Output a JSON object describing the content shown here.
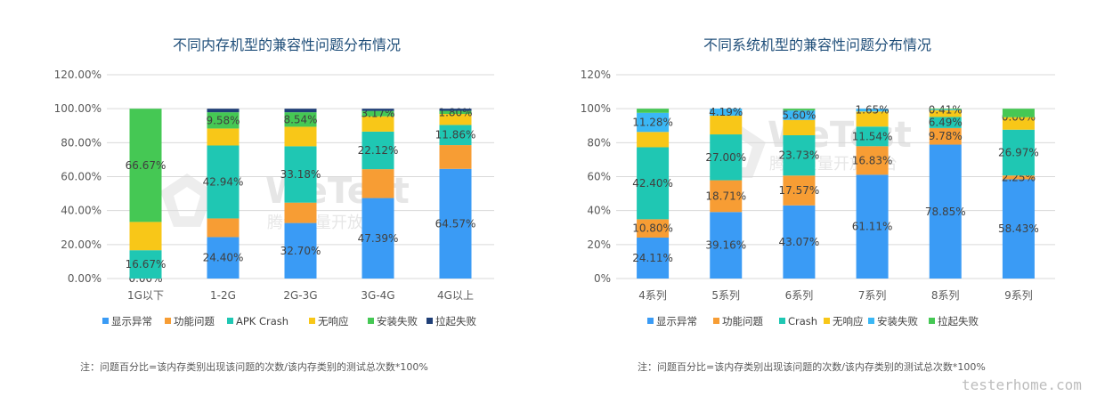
{
  "watermark": {
    "brand": "WeTest",
    "subtitle": "腾讯质量开放平台",
    "site": "testerhome.com"
  },
  "chart_data": [
    {
      "type": "bar",
      "stacked": true,
      "title": "不同内存机型的兼容性问题分布情况",
      "categories": [
        "1G以下",
        "1-2G",
        "2G-3G",
        "3G-4G",
        "4G以上"
      ],
      "y_ticks": [
        "0.00%",
        "20.00%",
        "40.00%",
        "60.00%",
        "80.00%",
        "100.00%",
        "120.00%"
      ],
      "ylim": [
        0,
        120
      ],
      "grid": true,
      "legend_position": "bottom",
      "series": [
        {
          "name": "显示异常",
          "color": "#3a9bf5",
          "values": [
            0.0,
            24.4,
            32.7,
            47.39,
            64.57
          ],
          "labels": [
            "0.00%",
            "24.40%",
            "32.70%",
            "47.39%",
            "64.57%"
          ]
        },
        {
          "name": "功能问题",
          "color": "#f79d34",
          "values": [
            0.0,
            11.0,
            12.0,
            17.0,
            14.0
          ],
          "labels": [
            "",
            "",
            "",
            "",
            ""
          ]
        },
        {
          "name": "APK Crash",
          "color": "#1fc7b3",
          "values": [
            16.67,
            42.94,
            33.18,
            22.12,
            11.86
          ],
          "labels": [
            "16.67%",
            "42.94%",
            "33.18%",
            "22.12%",
            "11.86%"
          ]
        },
        {
          "name": "无响应",
          "color": "#f8c718",
          "values": [
            16.66,
            10.0,
            11.5,
            9.0,
            6.5
          ],
          "labels": [
            "",
            "",
            "",
            "",
            ""
          ]
        },
        {
          "name": "安装失败",
          "color": "#45c854",
          "values": [
            66.67,
            9.58,
            8.54,
            3.17,
            1.8
          ],
          "labels": [
            "66.67%",
            "9.58%",
            "8.54%",
            "3.17%",
            "1.80%"
          ]
        },
        {
          "name": "拉起失败",
          "color": "#1f3f77",
          "values": [
            0.0,
            2.08,
            2.08,
            1.32,
            1.27
          ],
          "labels": [
            "",
            "",
            "",
            "",
            ""
          ]
        }
      ],
      "note": "注：问题百分比=该内存类别出现该问题的次数/该内存类别的测试总次数*100%"
    },
    {
      "type": "bar",
      "stacked": true,
      "title": "不同系统机型的兼容性问题分布情况",
      "categories": [
        "4系列",
        "5系列",
        "6系列",
        "7系列",
        "8系列",
        "9系列"
      ],
      "y_ticks": [
        "0%",
        "20%",
        "40%",
        "60%",
        "80%",
        "100%",
        "120%"
      ],
      "ylim": [
        0,
        120
      ],
      "grid": true,
      "legend_position": "bottom",
      "series": [
        {
          "name": "显示异常",
          "color": "#3a9bf5",
          "values": [
            24.11,
            39.16,
            43.07,
            61.11,
            78.85,
            58.43
          ],
          "labels": [
            "24.11%",
            "39.16%",
            "43.07%",
            "61.11%",
            "78.85%",
            "58.43%"
          ]
        },
        {
          "name": "功能问题",
          "color": "#f79d34",
          "values": [
            10.8,
            18.71,
            17.57,
            16.83,
            9.78,
            2.25
          ],
          "labels": [
            "10.80%",
            "18.71%",
            "17.57%",
            "16.83%",
            "9.78%",
            "2.25%"
          ]
        },
        {
          "name": "Crash",
          "color": "#1fc7b3",
          "values": [
            42.4,
            27.0,
            23.73,
            11.54,
            6.49,
            26.97
          ],
          "labels": [
            "42.40%",
            "27.00%",
            "23.73%",
            "11.54%",
            "6.49%",
            "26.97%"
          ]
        },
        {
          "name": "无响应",
          "color": "#f8c718",
          "values": [
            9.0,
            11.0,
            9.0,
            8.87,
            4.0,
            7.35
          ],
          "labels": [
            "",
            "",
            "",
            "",
            "",
            ""
          ]
        },
        {
          "name": "安装失败",
          "color": "#3ab7f5",
          "values": [
            11.28,
            4.19,
            5.6,
            1.65,
            0.41,
            0.0
          ],
          "labels": [
            "11.28%",
            "4.19%",
            "5.60%",
            "1.65%",
            "0.41%",
            "0.00%"
          ]
        },
        {
          "name": "拉起失败",
          "color": "#45c854",
          "values": [
            2.41,
            0.0,
            1.03,
            0.0,
            0.47,
            5.0
          ],
          "labels": [
            "",
            "",
            "",
            "",
            "",
            ""
          ]
        }
      ],
      "note": "注：问题百分比=该内存类别出现该问题的次数/该内存类别的测试总次数*100%"
    }
  ]
}
